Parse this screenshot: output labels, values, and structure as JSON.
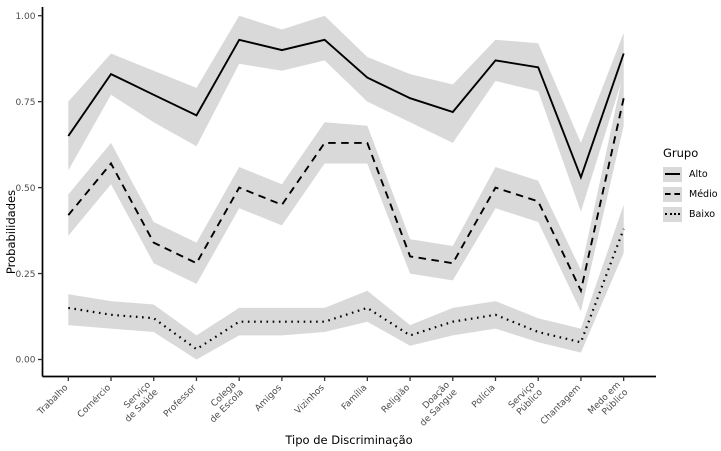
{
  "chart_data": {
    "type": "line",
    "title": "",
    "xlabel": "Tipo de Discriminação",
    "ylabel": "Probabilidades",
    "ylim": [
      0,
      1
    ],
    "yticks": [
      0,
      0.25,
      0.5,
      0.75,
      1.0
    ],
    "ytick_labels": [
      "0.00",
      "0.25",
      "0.50",
      "0.75",
      "1.00"
    ],
    "grid": false,
    "legend_title": "Grupo",
    "legend_position": "right",
    "line_color": "#000000",
    "ribbon_color": "#d9d9d9",
    "tick_label_color": "#4d4d4d",
    "categories": [
      "Trabalho",
      "Comércio",
      "Serviço de Saúde",
      "Professor",
      "Colega de Escola",
      "Amigos",
      "Vizinhos",
      "Família",
      "Religião",
      "Doação de Sangue",
      "Polícia",
      "Serviço Público",
      "Chantagem",
      "Medo em Público"
    ],
    "categories_multiline": [
      [
        "Trabalho"
      ],
      [
        "Comércio"
      ],
      [
        "Serviço",
        "de Saúde"
      ],
      [
        "Professor"
      ],
      [
        "Colega",
        "de Escola"
      ],
      [
        "Amigos"
      ],
      [
        "Vizinhos"
      ],
      [
        "Família"
      ],
      [
        "Religião"
      ],
      [
        "Doação",
        "de Sangue"
      ],
      [
        "Polícia"
      ],
      [
        "Serviço",
        "Público"
      ],
      [
        "Chantagem"
      ],
      [
        "Medo em",
        "Público"
      ]
    ],
    "series": [
      {
        "name": "Alto",
        "style": "solid",
        "values": [
          0.65,
          0.83,
          0.77,
          0.71,
          0.93,
          0.9,
          0.93,
          0.82,
          0.76,
          0.72,
          0.87,
          0.85,
          0.53,
          0.89
        ],
        "band_lower": [
          0.55,
          0.77,
          0.69,
          0.62,
          0.86,
          0.84,
          0.87,
          0.75,
          0.69,
          0.63,
          0.81,
          0.78,
          0.43,
          0.83
        ],
        "band_upper": [
          0.75,
          0.89,
          0.84,
          0.79,
          1.0,
          0.96,
          1.0,
          0.88,
          0.83,
          0.8,
          0.93,
          0.92,
          0.63,
          0.95
        ]
      },
      {
        "name": "Médio",
        "style": "dashed",
        "values": [
          0.42,
          0.57,
          0.34,
          0.28,
          0.5,
          0.45,
          0.63,
          0.63,
          0.3,
          0.28,
          0.5,
          0.46,
          0.2,
          0.76
        ],
        "band_lower": [
          0.36,
          0.51,
          0.28,
          0.22,
          0.44,
          0.39,
          0.57,
          0.57,
          0.25,
          0.23,
          0.44,
          0.4,
          0.14,
          0.68
        ],
        "band_upper": [
          0.48,
          0.63,
          0.4,
          0.34,
          0.56,
          0.51,
          0.69,
          0.68,
          0.35,
          0.33,
          0.56,
          0.52,
          0.26,
          0.84
        ]
      },
      {
        "name": "Baixo",
        "style": "dotted",
        "values": [
          0.15,
          0.13,
          0.12,
          0.03,
          0.11,
          0.11,
          0.11,
          0.15,
          0.07,
          0.11,
          0.13,
          0.08,
          0.05,
          0.38
        ],
        "band_lower": [
          0.1,
          0.09,
          0.08,
          0.0,
          0.07,
          0.07,
          0.08,
          0.11,
          0.04,
          0.07,
          0.09,
          0.05,
          0.02,
          0.31
        ],
        "band_upper": [
          0.19,
          0.17,
          0.16,
          0.07,
          0.15,
          0.15,
          0.15,
          0.2,
          0.1,
          0.15,
          0.17,
          0.12,
          0.09,
          0.45
        ]
      }
    ]
  }
}
